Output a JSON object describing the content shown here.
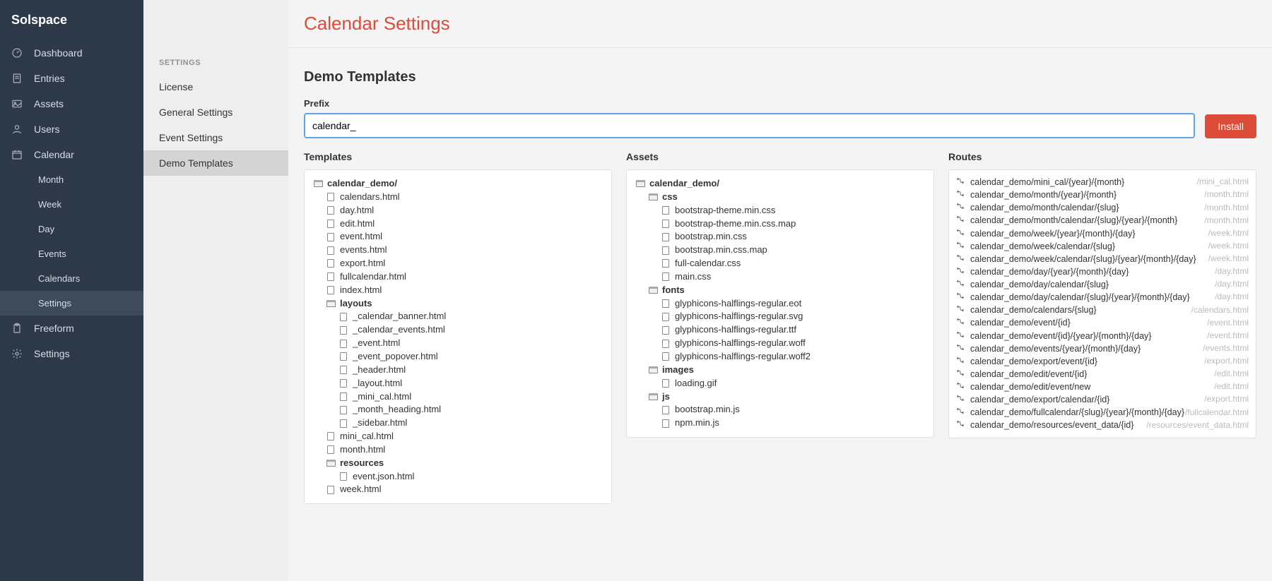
{
  "brand": "Solspace",
  "nav": {
    "items": [
      {
        "label": "Dashboard",
        "icon": "gauge"
      },
      {
        "label": "Entries",
        "icon": "doc"
      },
      {
        "label": "Assets",
        "icon": "image"
      },
      {
        "label": "Users",
        "icon": "user"
      },
      {
        "label": "Calendar",
        "icon": "calendar",
        "children": [
          {
            "label": "Month"
          },
          {
            "label": "Week"
          },
          {
            "label": "Day"
          },
          {
            "label": "Events"
          },
          {
            "label": "Calendars"
          },
          {
            "label": "Settings",
            "active": true
          }
        ]
      },
      {
        "label": "Freeform",
        "icon": "clipboard"
      },
      {
        "label": "Settings",
        "icon": "gear"
      }
    ]
  },
  "subnav": {
    "header": "SETTINGS",
    "items": [
      {
        "label": "License"
      },
      {
        "label": "General Settings"
      },
      {
        "label": "Event Settings"
      },
      {
        "label": "Demo Templates",
        "active": true
      }
    ]
  },
  "page": {
    "title": "Calendar Settings",
    "section_title": "Demo Templates",
    "prefix_label": "Prefix",
    "prefix_value": "calendar_",
    "install_label": "Install"
  },
  "columns": {
    "templates_title": "Templates",
    "assets_title": "Assets",
    "routes_title": "Routes"
  },
  "templates_tree": [
    {
      "d": 0,
      "t": "folder",
      "n": "calendar_demo/",
      "b": true
    },
    {
      "d": 1,
      "t": "file",
      "n": "calendars.html"
    },
    {
      "d": 1,
      "t": "file",
      "n": "day.html"
    },
    {
      "d": 1,
      "t": "file",
      "n": "edit.html"
    },
    {
      "d": 1,
      "t": "file",
      "n": "event.html"
    },
    {
      "d": 1,
      "t": "file",
      "n": "events.html"
    },
    {
      "d": 1,
      "t": "file",
      "n": "export.html"
    },
    {
      "d": 1,
      "t": "file",
      "n": "fullcalendar.html"
    },
    {
      "d": 1,
      "t": "file",
      "n": "index.html"
    },
    {
      "d": 1,
      "t": "folder",
      "n": "layouts",
      "b": true
    },
    {
      "d": 2,
      "t": "file",
      "n": "_calendar_banner.html"
    },
    {
      "d": 2,
      "t": "file",
      "n": "_calendar_events.html"
    },
    {
      "d": 2,
      "t": "file",
      "n": "_event.html"
    },
    {
      "d": 2,
      "t": "file",
      "n": "_event_popover.html"
    },
    {
      "d": 2,
      "t": "file",
      "n": "_header.html"
    },
    {
      "d": 2,
      "t": "file",
      "n": "_layout.html"
    },
    {
      "d": 2,
      "t": "file",
      "n": "_mini_cal.html"
    },
    {
      "d": 2,
      "t": "file",
      "n": "_month_heading.html"
    },
    {
      "d": 2,
      "t": "file",
      "n": "_sidebar.html"
    },
    {
      "d": 1,
      "t": "file",
      "n": "mini_cal.html"
    },
    {
      "d": 1,
      "t": "file",
      "n": "month.html"
    },
    {
      "d": 1,
      "t": "folder",
      "n": "resources",
      "b": true
    },
    {
      "d": 2,
      "t": "file",
      "n": "event.json.html"
    },
    {
      "d": 1,
      "t": "file",
      "n": "week.html"
    }
  ],
  "assets_tree": [
    {
      "d": 0,
      "t": "folder",
      "n": "calendar_demo/",
      "b": true
    },
    {
      "d": 1,
      "t": "folder",
      "n": "css",
      "b": true
    },
    {
      "d": 2,
      "t": "file",
      "n": "bootstrap-theme.min.css"
    },
    {
      "d": 2,
      "t": "file",
      "n": "bootstrap-theme.min.css.map"
    },
    {
      "d": 2,
      "t": "file",
      "n": "bootstrap.min.css"
    },
    {
      "d": 2,
      "t": "file",
      "n": "bootstrap.min.css.map"
    },
    {
      "d": 2,
      "t": "file",
      "n": "full-calendar.css"
    },
    {
      "d": 2,
      "t": "file",
      "n": "main.css"
    },
    {
      "d": 1,
      "t": "folder",
      "n": "fonts",
      "b": true
    },
    {
      "d": 2,
      "t": "file",
      "n": "glyphicons-halflings-regular.eot"
    },
    {
      "d": 2,
      "t": "file",
      "n": "glyphicons-halflings-regular.svg"
    },
    {
      "d": 2,
      "t": "file",
      "n": "glyphicons-halflings-regular.ttf"
    },
    {
      "d": 2,
      "t": "file",
      "n": "glyphicons-halflings-regular.woff"
    },
    {
      "d": 2,
      "t": "file",
      "n": "glyphicons-halflings-regular.woff2"
    },
    {
      "d": 1,
      "t": "folder",
      "n": "images",
      "b": true
    },
    {
      "d": 2,
      "t": "file",
      "n": "loading.gif"
    },
    {
      "d": 1,
      "t": "folder",
      "n": "js",
      "b": true
    },
    {
      "d": 2,
      "t": "file",
      "n": "bootstrap.min.js"
    },
    {
      "d": 2,
      "t": "file",
      "n": "npm.min.js"
    }
  ],
  "routes": [
    {
      "p": "calendar_demo/mini_cal/{year}/{month}",
      "a": "/mini_cal.html"
    },
    {
      "p": "calendar_demo/month/{year}/{month}",
      "a": "/month.html"
    },
    {
      "p": "calendar_demo/month/calendar/{slug}",
      "a": "/month.html"
    },
    {
      "p": "calendar_demo/month/calendar/{slug}/{year}/{month}",
      "a": "/month.html"
    },
    {
      "p": "calendar_demo/week/{year}/{month}/{day}",
      "a": "/week.html"
    },
    {
      "p": "calendar_demo/week/calendar/{slug}",
      "a": "/week.html"
    },
    {
      "p": "calendar_demo/week/calendar/{slug}/{year}/{month}/{day}",
      "a": "/week.html"
    },
    {
      "p": "calendar_demo/day/{year}/{month}/{day}",
      "a": "/day.html"
    },
    {
      "p": "calendar_demo/day/calendar/{slug}",
      "a": "/day.html"
    },
    {
      "p": "calendar_demo/day/calendar/{slug}/{year}/{month}/{day}",
      "a": "/day.html"
    },
    {
      "p": "calendar_demo/calendars/{slug}",
      "a": "/calendars.html"
    },
    {
      "p": "calendar_demo/event/{id}",
      "a": "/event.html"
    },
    {
      "p": "calendar_demo/event/{id}/{year}/{month}/{day}",
      "a": "/event.html"
    },
    {
      "p": "calendar_demo/events/{year}/{month}/{day}",
      "a": "/events.html"
    },
    {
      "p": "calendar_demo/export/event/{id}",
      "a": "/export.html"
    },
    {
      "p": "calendar_demo/edit/event/{id}",
      "a": "/edit.html"
    },
    {
      "p": "calendar_demo/edit/event/new",
      "a": "/edit.html"
    },
    {
      "p": "calendar_demo/export/calendar/{id}",
      "a": "/export.html"
    },
    {
      "p": "calendar_demo/fullcalendar/{slug}/{year}/{month}/{day}",
      "a": "/fullcalendar.html"
    },
    {
      "p": "calendar_demo/resources/event_data/{id}",
      "a": "/resources/event_data.html"
    }
  ],
  "colors": {
    "sidebar_bg": "#2d3948",
    "sidebar_text": "#cfd5de",
    "subnav_bg": "#eeeeee",
    "page_bg": "#f4f4f4",
    "accent": "#dd4b39",
    "focus_border": "#5fa6e8",
    "panel_border": "#e0e0e0",
    "muted_text": "#bbbbbb"
  }
}
